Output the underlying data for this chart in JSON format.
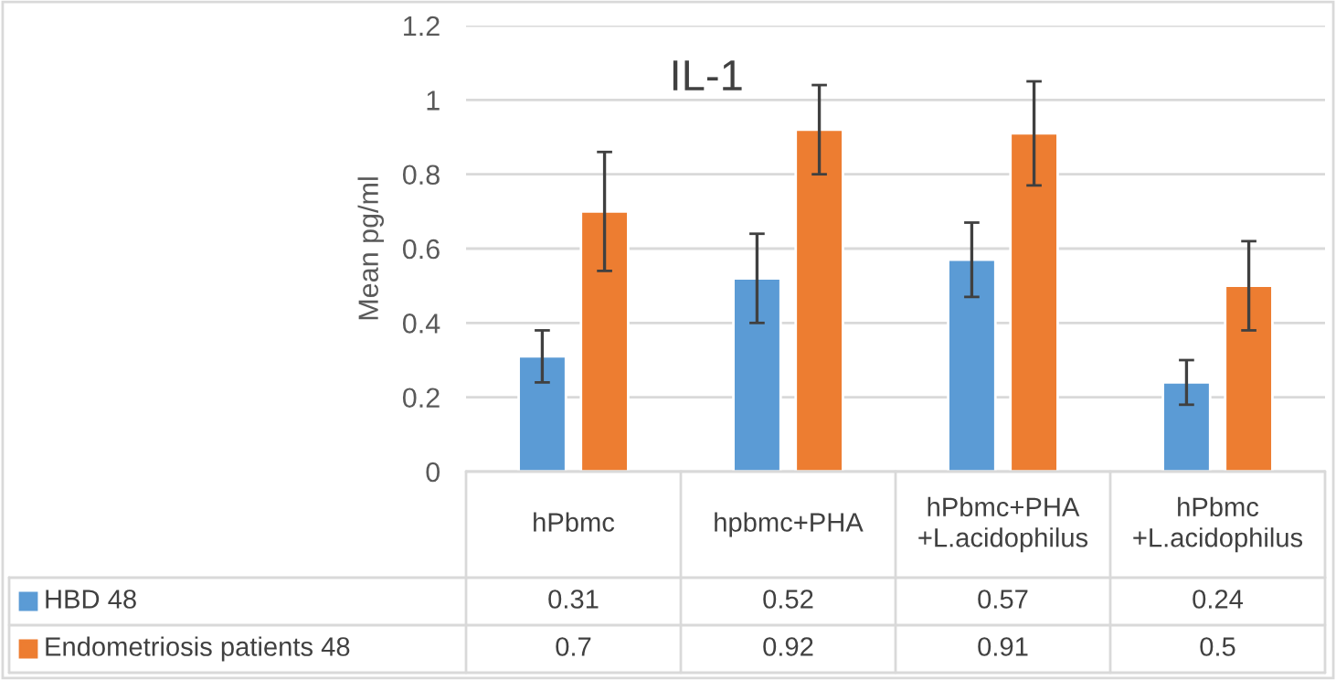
{
  "chart_data": {
    "type": "bar",
    "title": "IL-1",
    "ylabel": "Mean pg/ml",
    "categories": [
      "hPbmc",
      "hpbmc+PHA",
      "hPbmc+PHA\n+L.acidophilus",
      "hPbmc\n+L.acidophilus"
    ],
    "series": [
      {
        "name": "HBD 48",
        "color": "#5b9bd5",
        "values": [
          0.31,
          0.52,
          0.57,
          0.24
        ],
        "errors": [
          [
            0.24,
            0.38
          ],
          [
            0.4,
            0.64
          ],
          [
            0.47,
            0.67
          ],
          [
            0.18,
            0.3
          ]
        ]
      },
      {
        "name": "Endometriosis patients 48",
        "color": "#ed7d31",
        "values": [
          0.7,
          0.92,
          0.91,
          0.5
        ],
        "errors": [
          [
            0.54,
            0.86
          ],
          [
            0.8,
            1.04
          ],
          [
            0.77,
            1.05
          ],
          [
            0.38,
            0.62
          ]
        ]
      }
    ],
    "ylim": [
      0,
      1.2
    ],
    "yticks": [
      0,
      0.2,
      0.4,
      0.6,
      0.8,
      1,
      1.2
    ],
    "grid": "y",
    "data_labels": true,
    "legend": "bottom left"
  }
}
